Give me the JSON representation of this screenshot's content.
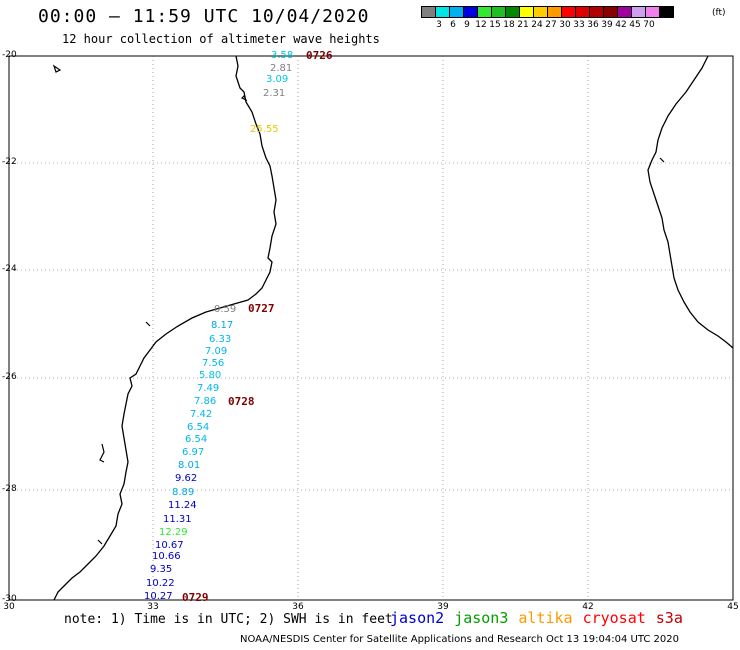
{
  "header": {
    "title": "00:00 – 11:59 UTC 10/04/2020",
    "subtitle": "12 hour collection of altimeter wave heights"
  },
  "legend": {
    "colors": [
      "#7f7f7f",
      "#00e5e5",
      "#00b0f0",
      "#0000e0",
      "#33e833",
      "#20c020",
      "#008800",
      "#ffff00",
      "#ffcc00",
      "#ff9900",
      "#ff0000",
      "#dd0000",
      "#b00000",
      "#880000",
      "#a000a0",
      "#d0a0f0",
      "#f080f0",
      "#000000"
    ],
    "labels": [
      "3",
      "6",
      "9",
      "12",
      "15",
      "18",
      "21",
      "24",
      "27",
      "30",
      "33",
      "36",
      "39",
      "42",
      "45",
      "70"
    ],
    "unit": "(ft)"
  },
  "axes": {
    "lat_labels": [
      "-20",
      "-22",
      "-24",
      "-26",
      "-28",
      "-30"
    ],
    "lon_labels": [
      "30",
      "33",
      "36",
      "39",
      "42",
      "45"
    ]
  },
  "pass_labels": [
    "0726",
    "0727",
    "0728",
    "0729"
  ],
  "wave_heights": [
    {
      "value": "3.58",
      "color": "#00c8e0"
    },
    {
      "value": "2.81",
      "color": "#808080"
    },
    {
      "value": "3.09",
      "color": "#00c8e0"
    },
    {
      "value": "2.31",
      "color": "#808080"
    },
    {
      "value": "25.55",
      "color": "#e8c800"
    },
    {
      "value": "0.59",
      "color": "#808080"
    },
    {
      "value": "8.17",
      "color": "#00a8e8"
    },
    {
      "value": "6.33",
      "color": "#00b8e8"
    },
    {
      "value": "7.09",
      "color": "#00b8e8"
    },
    {
      "value": "7.56",
      "color": "#00b8e8"
    },
    {
      "value": "5.80",
      "color": "#00c8e0"
    },
    {
      "value": "7.49",
      "color": "#00b8e8"
    },
    {
      "value": "7.86",
      "color": "#00b8e8"
    },
    {
      "value": "7.42",
      "color": "#00b8e8"
    },
    {
      "value": "6.54",
      "color": "#00b8e8"
    },
    {
      "value": "6.54",
      "color": "#00b8e8"
    },
    {
      "value": "6.97",
      "color": "#00b8e8"
    },
    {
      "value": "8.01",
      "color": "#00a8e8"
    },
    {
      "value": "9.62",
      "color": "#0000c8"
    },
    {
      "value": "8.89",
      "color": "#00a8e8"
    },
    {
      "value": "11.24",
      "color": "#0000c8"
    },
    {
      "value": "11.31",
      "color": "#0000c8"
    },
    {
      "value": "12.29",
      "color": "#33e833"
    },
    {
      "value": "10.67",
      "color": "#0000c8"
    },
    {
      "value": "10.66",
      "color": "#0000c8"
    },
    {
      "value": "9.35",
      "color": "#0000c8"
    },
    {
      "value": "10.22",
      "color": "#0000c8"
    },
    {
      "value": "10.27",
      "color": "#0000c8"
    }
  ],
  "footer": {
    "note": "note: 1) Time is in UTC; 2) SWH is in feet",
    "satellites": [
      {
        "name": "jason2",
        "color": "#0000d0"
      },
      {
        "name": "jason3",
        "color": "#00a000"
      },
      {
        "name": "altika",
        "color": "#ff9900"
      },
      {
        "name": "cryosat",
        "color": "#ff0000"
      },
      {
        "name": "s3a",
        "color": "#c00000"
      }
    ],
    "credit": "NOAA/NESDIS Center for Satellite Applications and Research    Oct 13 19:04:04 UTC 2020"
  }
}
